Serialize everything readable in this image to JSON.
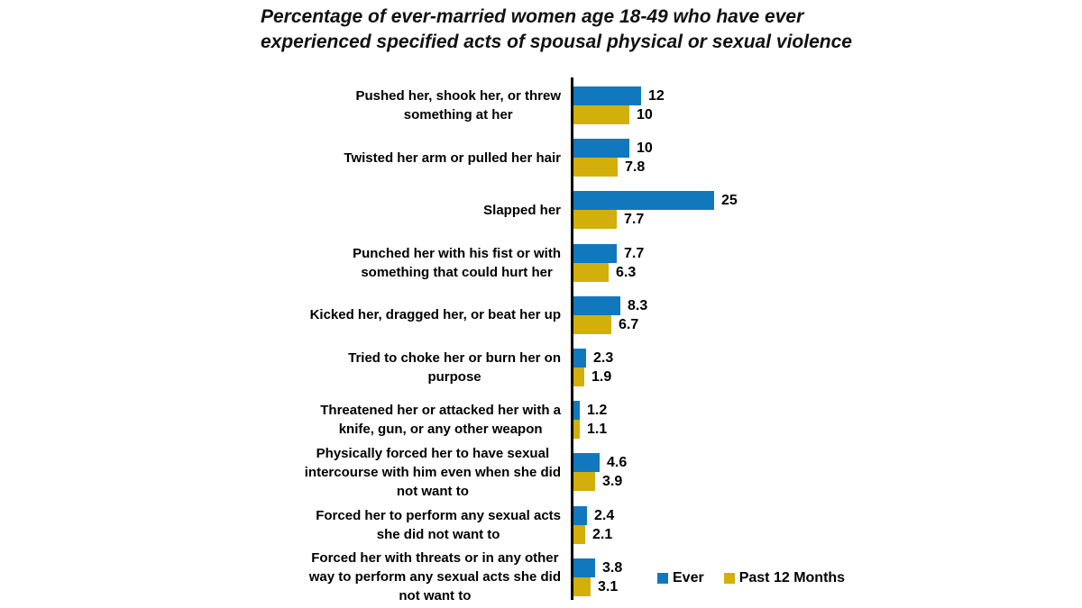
{
  "title": {
    "lines": [
      "Percentage of ever-married women age 18-49 who have ever",
      "experienced specified acts of spousal physical or sexual violence"
    ]
  },
  "colors": {
    "ever_series": "#1278BE",
    "past_12_months_series": "#D2AF0B",
    "axis_line": "#000000",
    "text": "#000000",
    "background": "#FFFFFF"
  },
  "chart_data": {
    "type": "bar",
    "orientation": "horizontal",
    "title": "Percentage of ever-married women age 18-49 who have ever experienced specified acts of spousal physical or sexual violence",
    "xlabel": "",
    "ylabel": "",
    "value_axis": {
      "min": 0,
      "max": 28,
      "ticks_shown": false,
      "gridlines": false
    },
    "legend_position": "bottom-right",
    "data_labels_shown": true,
    "categories": [
      "Pushed her, shook her, or threw something at her",
      "Twisted her arm or pulled her hair",
      "Slapped her",
      "Punched her with his fist or with something that could hurt her",
      "Kicked her, dragged her, or beat her up",
      "Tried to choke her or burn her on purpose",
      "Threatened her or attacked her with a knife, gun, or any other weapon",
      "Physically forced her to have sexual intercourse with him even when she did not want to",
      "Forced her to perform any sexual acts she did not want to",
      "Forced her with threats or in any other way to perform any sexual acts she did not want to"
    ],
    "category_label_lines": [
      [
        "Pushed her, shook her, or threw",
        "something at her"
      ],
      [
        "Twisted her arm or pulled her hair"
      ],
      [
        "Slapped her"
      ],
      [
        "Punched her with his fist or with",
        "something that could hurt her"
      ],
      [
        "Kicked her, dragged her, or beat her up"
      ],
      [
        "Tried to choke her or burn her on",
        "purpose"
      ],
      [
        "Threatened her or attacked her with a",
        "knife, gun, or any other weapon"
      ],
      [
        "Physically forced her to have sexual",
        "intercourse with him even when she did",
        "not want to"
      ],
      [
        "Forced her to perform any sexual acts",
        "she did not want to"
      ],
      [
        "Forced her with threats or in any other",
        "way to perform any sexual acts she did",
        "not want to"
      ]
    ],
    "series": [
      {
        "name": "Ever",
        "color": "#1278BE",
        "values": [
          12,
          10,
          25,
          7.7,
          8.3,
          2.3,
          1.2,
          4.6,
          2.4,
          3.8
        ],
        "value_labels": [
          "12",
          "10",
          "25",
          "7.7",
          "8.3",
          "2.3",
          "1.2",
          "4.6",
          "2.4",
          "3.8"
        ]
      },
      {
        "name": "Past 12 Months",
        "color": "#D2AF0B",
        "values": [
          10,
          7.8,
          7.7,
          6.3,
          6.7,
          1.9,
          1.1,
          3.9,
          2.1,
          3.1
        ],
        "value_labels": [
          "10",
          "7.8",
          "7.7",
          "6.3",
          "6.7",
          "1.9",
          "1.1",
          "3.9",
          "2.1",
          "3.1"
        ]
      }
    ]
  },
  "legend": {
    "items": [
      {
        "label": "Ever",
        "color": "#1278BE"
      },
      {
        "label": "Past 12 Months",
        "color": "#D2AF0B"
      }
    ]
  }
}
